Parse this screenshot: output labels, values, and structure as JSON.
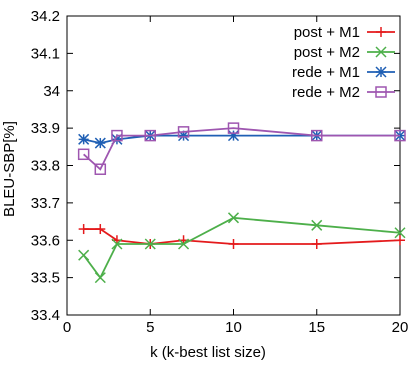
{
  "chart_data": {
    "type": "line",
    "xlabel": "k (k-best list size)",
    "ylabel": "BLEU-SBP[%]",
    "xlim": [
      0,
      20
    ],
    "ylim": [
      33.4,
      34.2
    ],
    "x_ticks": [
      0,
      5,
      10,
      15,
      20
    ],
    "y_ticks": [
      33.4,
      33.5,
      33.6,
      33.7,
      33.8,
      33.9,
      34.0,
      34.1,
      34.2
    ],
    "x_tick_labels": [
      "0",
      "5",
      "10",
      "15",
      "20"
    ],
    "y_tick_labels": [
      "33.4",
      "33.5",
      "33.6",
      "33.7",
      "33.8",
      "33.9",
      "34",
      "34.1",
      "34.2"
    ],
    "grid": false,
    "legend_position": "top-right",
    "x": [
      1,
      2,
      3,
      5,
      7,
      10,
      15,
      20
    ],
    "series": [
      {
        "name": "post + M1",
        "color": "#e41a1c",
        "marker": "plus",
        "values": [
          33.63,
          33.63,
          33.6,
          33.59,
          33.6,
          33.59,
          33.59,
          33.6
        ]
      },
      {
        "name": "post + M2",
        "color": "#4daf4a",
        "marker": "cross",
        "values": [
          33.56,
          33.5,
          33.59,
          33.59,
          33.59,
          33.66,
          33.64,
          33.62
        ]
      },
      {
        "name": "rede + M1",
        "color": "#1f5fb4",
        "marker": "star",
        "values": [
          33.87,
          33.86,
          33.87,
          33.88,
          33.88,
          33.88,
          33.88,
          33.88
        ]
      },
      {
        "name": "rede + M2",
        "color": "#9e56b0",
        "marker": "square",
        "values": [
          33.83,
          33.79,
          33.88,
          33.88,
          33.89,
          33.9,
          33.88,
          33.88
        ]
      }
    ]
  }
}
